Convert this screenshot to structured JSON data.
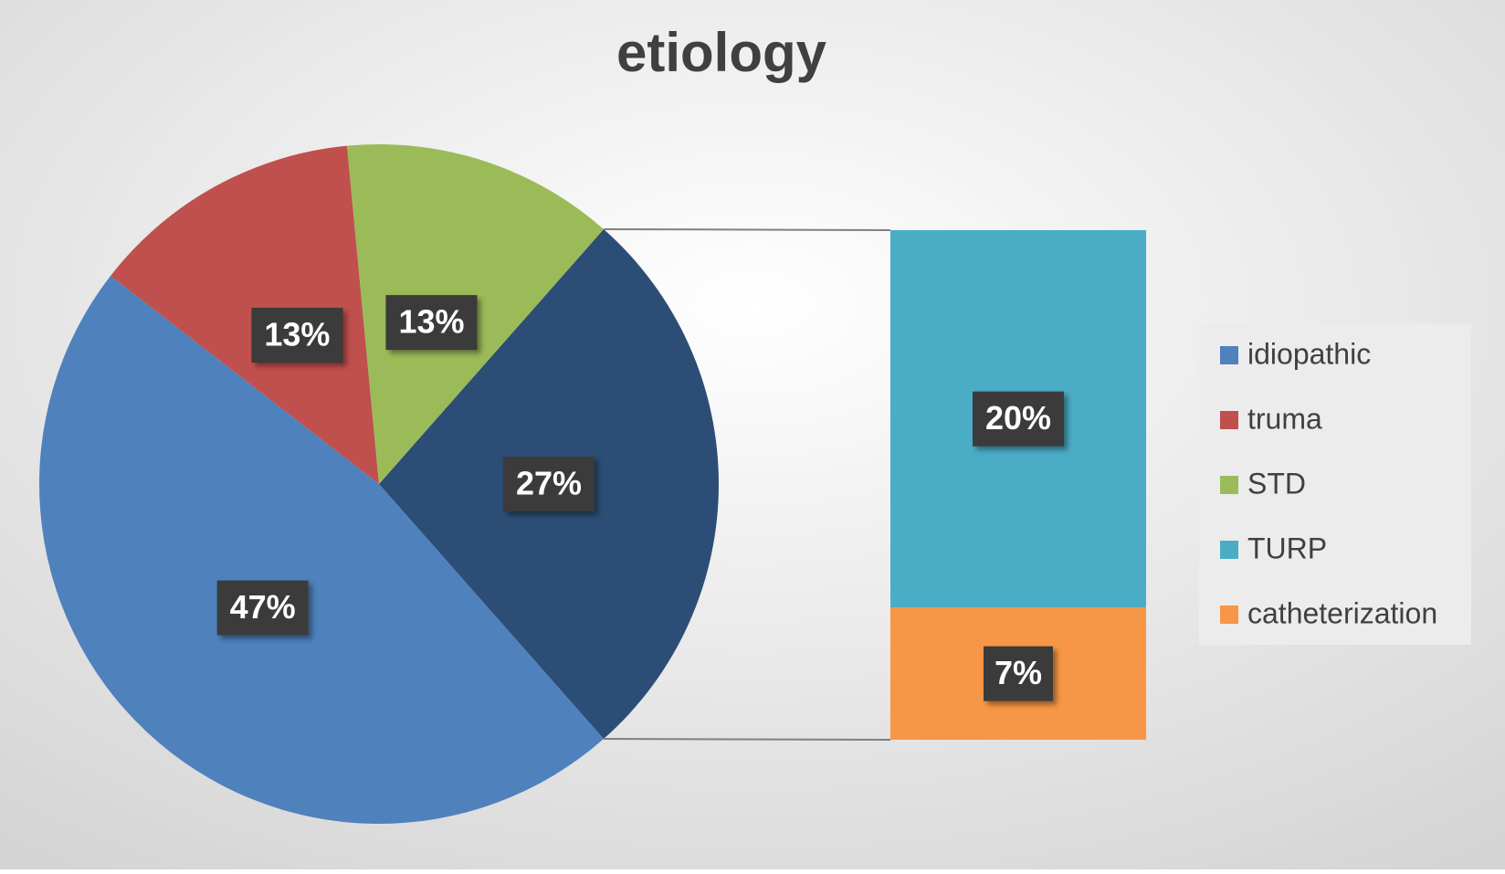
{
  "chart_data": {
    "type": "bar-of-pie",
    "title": "etiology",
    "categories": [
      "idiopathic",
      "truma",
      "STD",
      "TURP",
      "catheterization"
    ],
    "values": [
      47,
      13,
      13,
      20,
      7
    ],
    "value_labels": [
      "47%",
      "13%",
      "13%",
      "20%",
      "7%"
    ],
    "colors": [
      "#4f81bd",
      "#c0504d",
      "#9bbb59",
      "#4bacc6",
      "#f79646"
    ],
    "other": {
      "value": 27,
      "label": "27%",
      "color": "#2c4d75"
    },
    "legend": "right"
  }
}
